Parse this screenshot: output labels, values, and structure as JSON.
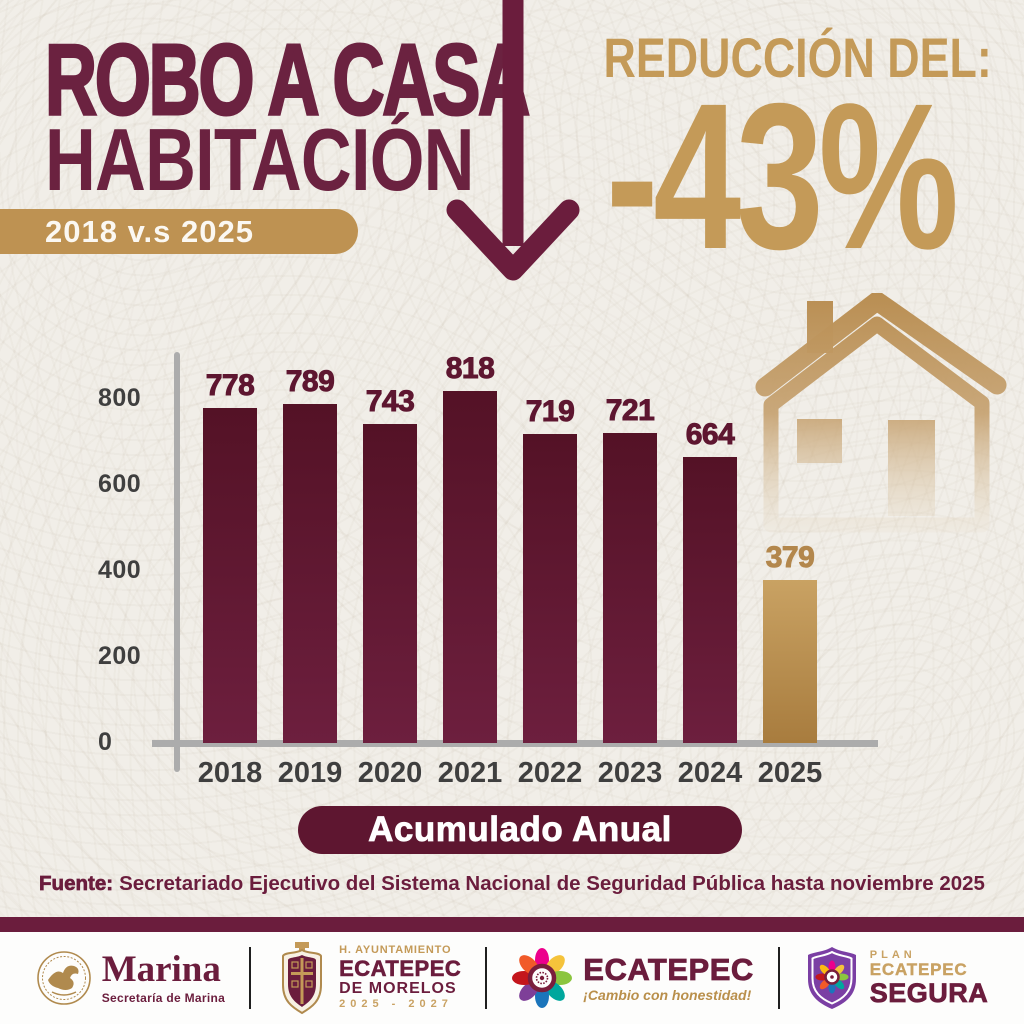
{
  "header": {
    "title_line1": "ROBO A CASA",
    "title_line2": "HABITACIÓN",
    "subtitle_badge": "2018 v.s 2025",
    "reduction_label": "REDUCCIÓN DEL:",
    "reduction_value": "-43%"
  },
  "chart_data": {
    "type": "bar",
    "title": "Robo a casa habitación, acumulado anual 2018 vs 2025",
    "categories": [
      "2018",
      "2019",
      "2020",
      "2021",
      "2022",
      "2023",
      "2024",
      "2025"
    ],
    "values": [
      778,
      789,
      743,
      818,
      719,
      721,
      664,
      379
    ],
    "highlight_index": 7,
    "y_ticks": [
      800,
      600,
      400,
      200,
      0
    ],
    "ylim": [
      0,
      800
    ],
    "xlabel": "",
    "ylabel": "",
    "legend": "none",
    "grid": false,
    "bar_color": "#5E1630",
    "highlight_color": "#B3874C"
  },
  "caption_pill": "Acumulado Anual",
  "source": {
    "label": "Fuente:",
    "text": "Secretariado Ejecutivo del Sistema Nacional de Seguridad Pública hasta noviembre 2025"
  },
  "footer": {
    "marina": {
      "name": "Marina",
      "sub": "Secretaría de Marina"
    },
    "ayuntamiento": {
      "line1": "H. AYUNTAMIENTO",
      "line2": "ECATEPEC",
      "line3": "DE MORELOS",
      "line4": "2025 - 2027"
    },
    "ecatepec": {
      "name": "ECATEPEC",
      "slogan": "¡Cambio con honestidad!"
    },
    "plan": {
      "line1": "PLAN",
      "line2": "ECATEPEC",
      "line3": "SEGURA"
    }
  },
  "colors": {
    "background": "#F1EEE8",
    "maroon": "#6B1D3D",
    "title_maroon": "#6B2240",
    "gold": "#C49A58",
    "banner_gold": "#BE9252",
    "axis_gray": "#ACACAC",
    "label_gray": "#3F3F3F",
    "shield_purple": "#7B3FA4"
  }
}
